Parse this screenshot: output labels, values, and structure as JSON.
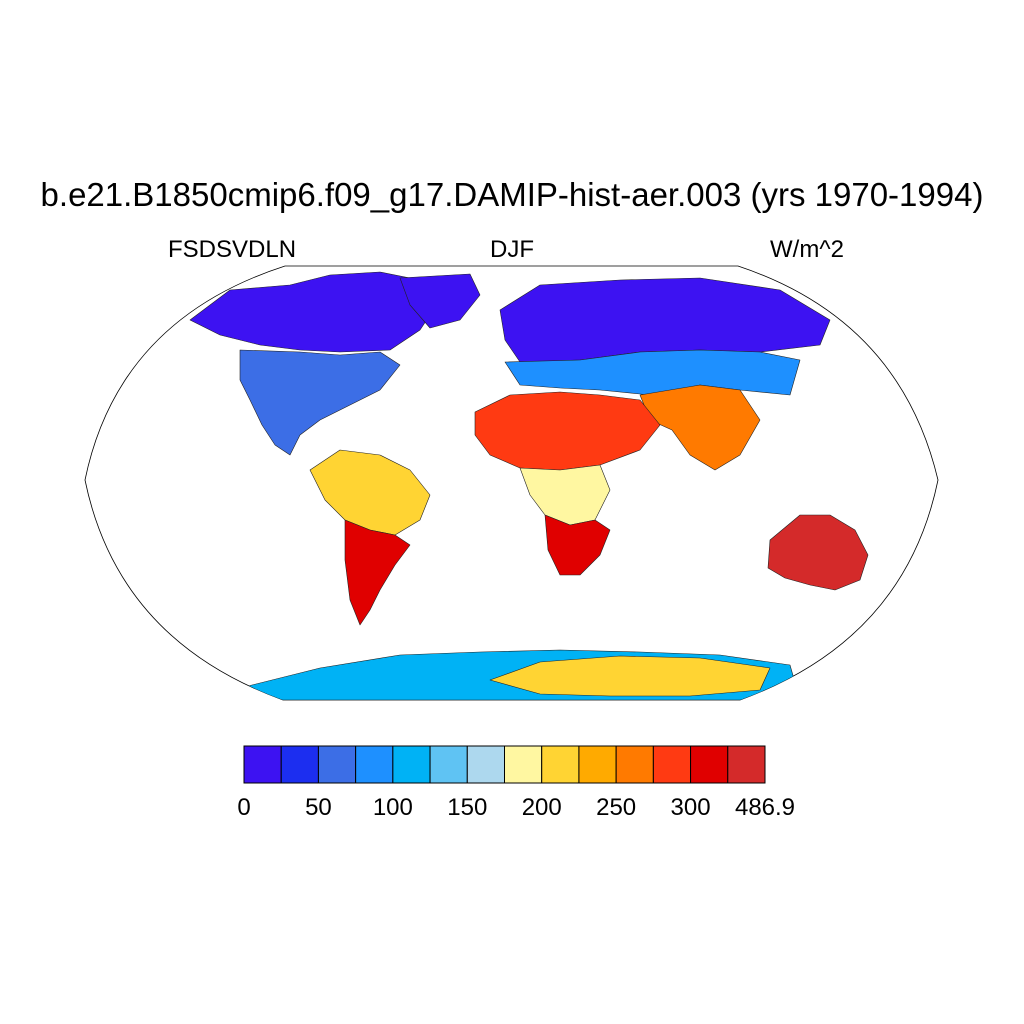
{
  "title": "b.e21.B1850cmip6.f09_g17.DAMIP-hist-aer.003 (yrs 1970-1994)",
  "subtitles": {
    "left": "FSDSVDLN",
    "center": "DJF",
    "right": "W/m^2"
  },
  "map": {
    "projection": "robinson",
    "field": "FSDSVDLN",
    "season": "DJF",
    "regions": [
      {
        "id": "arctic-canada",
        "level": 0
      },
      {
        "id": "north-america",
        "level": 2
      },
      {
        "id": "greenland",
        "level": 0
      },
      {
        "id": "siberia",
        "level": 0
      },
      {
        "id": "europe",
        "level": 3
      },
      {
        "id": "south-asia",
        "level": 10
      },
      {
        "id": "sahara",
        "level": 11
      },
      {
        "id": "central-africa",
        "level": 7
      },
      {
        "id": "southern-africa",
        "level": 12
      },
      {
        "id": "amazon",
        "level": 8
      },
      {
        "id": "south-america-south",
        "level": 12
      },
      {
        "id": "australia",
        "level": 13
      },
      {
        "id": "antarctica-coast",
        "level": 4
      },
      {
        "id": "antarctica-interior",
        "level": 8
      }
    ]
  },
  "colorbar": {
    "colors": [
      "#3d12f2",
      "#1c2ef0",
      "#3c6ee6",
      "#1e90ff",
      "#00b2f5",
      "#5fc3f3",
      "#add8ee",
      "#fff7a1",
      "#ffd433",
      "#ffaa00",
      "#ff7a00",
      "#ff3a12",
      "#e00000",
      "#d42a2a"
    ],
    "tick_labels": [
      "0",
      "50",
      "100",
      "150",
      "200",
      "250",
      "300",
      "486.9"
    ]
  }
}
